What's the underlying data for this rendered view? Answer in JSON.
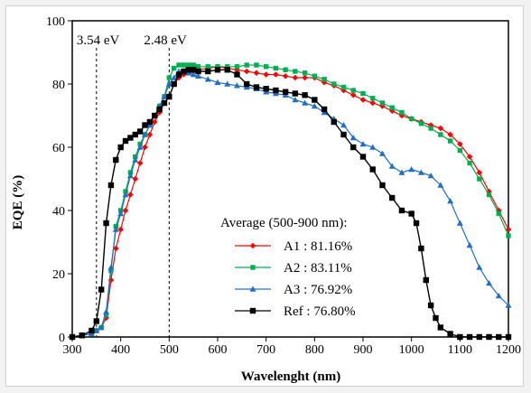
{
  "chart_data": {
    "type": "line",
    "xlabel": "Wavelenght (nm)",
    "ylabel": "EQE (%)",
    "xlim": [
      300,
      1200
    ],
    "ylim": [
      0,
      100
    ],
    "x_ticks": [
      "300",
      "400",
      "500",
      "600",
      "700",
      "800",
      "900",
      "1000",
      "1100",
      "1200"
    ],
    "y_ticks": [
      "0",
      "20",
      "40",
      "60",
      "80",
      "100"
    ],
    "grid": false,
    "legend_placement": "bottom-center",
    "legend_title": "Average (500-900 nm):",
    "annotations": [
      {
        "label": "3.54 eV",
        "x": 350
      },
      {
        "label": "2.48 eV",
        "x": 500
      }
    ],
    "series": [
      {
        "name": "A1",
        "legend_label": "A1 : 81.16%",
        "color": "#ff0000",
        "marker": "diamond",
        "x": [
          300,
          320,
          340,
          350,
          360,
          370,
          380,
          390,
          400,
          410,
          420,
          430,
          440,
          450,
          460,
          470,
          480,
          490,
          500,
          510,
          520,
          530,
          540,
          550,
          560,
          580,
          600,
          620,
          640,
          660,
          680,
          700,
          720,
          740,
          760,
          780,
          800,
          820,
          840,
          860,
          880,
          900,
          920,
          940,
          960,
          980,
          1000,
          1020,
          1040,
          1060,
          1080,
          1100,
          1120,
          1140,
          1160,
          1180,
          1200
        ],
        "y": [
          0,
          0.5,
          1,
          2,
          3,
          6,
          18,
          28,
          34,
          40,
          45,
          50,
          55,
          60,
          64,
          68,
          71,
          74,
          76,
          80,
          82,
          83,
          83.5,
          84,
          84.5,
          85,
          85.5,
          85,
          84.5,
          84,
          83.5,
          83,
          83,
          82.5,
          82,
          82,
          82,
          80.5,
          79.5,
          78,
          76.5,
          75,
          74,
          73,
          71.5,
          70,
          69,
          68,
          67,
          66,
          64,
          61,
          57,
          52,
          46,
          40,
          34
        ]
      },
      {
        "name": "A2",
        "legend_label": "A2 : 83.11%",
        "color": "#00b050",
        "marker": "square",
        "x": [
          300,
          320,
          340,
          350,
          360,
          370,
          380,
          390,
          400,
          410,
          420,
          430,
          440,
          450,
          460,
          470,
          480,
          490,
          500,
          510,
          520,
          530,
          540,
          550,
          560,
          580,
          600,
          620,
          640,
          660,
          680,
          700,
          720,
          740,
          760,
          780,
          800,
          820,
          840,
          860,
          880,
          900,
          920,
          940,
          960,
          980,
          1000,
          1020,
          1040,
          1060,
          1080,
          1100,
          1120,
          1140,
          1160,
          1180,
          1200
        ],
        "y": [
          0,
          0.5,
          1,
          2,
          3,
          7,
          21,
          35,
          40,
          46,
          52,
          57,
          61,
          64,
          67,
          70,
          73,
          76,
          82,
          85,
          86,
          86,
          86,
          86,
          85.5,
          85.5,
          85.5,
          85.5,
          85.5,
          86,
          86,
          85.5,
          85,
          84.5,
          84,
          83.5,
          82.5,
          81.5,
          80,
          79,
          78,
          77,
          75.5,
          74,
          72.5,
          71,
          69,
          67.5,
          66,
          64,
          62,
          59,
          55,
          50,
          45,
          39,
          32
        ]
      },
      {
        "name": "A3",
        "legend_label": "A3 : 76.92%",
        "color": "#1f6fc5",
        "marker": "triangle",
        "x": [
          300,
          320,
          340,
          350,
          360,
          370,
          380,
          390,
          400,
          410,
          420,
          430,
          440,
          450,
          460,
          470,
          480,
          490,
          500,
          510,
          520,
          530,
          540,
          550,
          560,
          580,
          600,
          620,
          640,
          660,
          680,
          700,
          720,
          740,
          760,
          780,
          800,
          820,
          840,
          860,
          880,
          900,
          920,
          940,
          960,
          980,
          1000,
          1020,
          1040,
          1060,
          1080,
          1100,
          1120,
          1140,
          1160,
          1180,
          1200
        ],
        "y": [
          0,
          0.5,
          1,
          2,
          3,
          8,
          22,
          34,
          39,
          45,
          51,
          56,
          60,
          64,
          67,
          70,
          73,
          76,
          80,
          82,
          84,
          84,
          83.5,
          83,
          82.5,
          81.5,
          80.5,
          80,
          79.5,
          79,
          78.5,
          77.5,
          77,
          76.5,
          75,
          74,
          73,
          71,
          69,
          67,
          63,
          61,
          60,
          58,
          54,
          52,
          53,
          52,
          51,
          48,
          43,
          36,
          29,
          22,
          17,
          13,
          10
        ]
      },
      {
        "name": "Ref",
        "legend_label": "Ref : 76.80%",
        "color": "#000000",
        "marker": "square",
        "x": [
          300,
          320,
          340,
          350,
          360,
          370,
          380,
          390,
          400,
          410,
          420,
          430,
          440,
          450,
          460,
          470,
          480,
          490,
          500,
          510,
          520,
          530,
          540,
          550,
          560,
          580,
          600,
          620,
          640,
          660,
          680,
          700,
          720,
          740,
          760,
          780,
          800,
          820,
          840,
          860,
          880,
          900,
          920,
          940,
          960,
          980,
          1000,
          1010,
          1020,
          1030,
          1040,
          1050,
          1060,
          1080,
          1100,
          1120,
          1140,
          1160,
          1180,
          1200
        ],
        "y": [
          0,
          0.5,
          2,
          5,
          15,
          36,
          48,
          56,
          60,
          62,
          63,
          64,
          65,
          67,
          68,
          70,
          72,
          74,
          76,
          80,
          83,
          84,
          84.5,
          84.5,
          84,
          84,
          84.5,
          84.5,
          83,
          80,
          79,
          78.5,
          78,
          77.5,
          77,
          76.5,
          75,
          72,
          68,
          64,
          60,
          57,
          53,
          48,
          44,
          40,
          39,
          36,
          28,
          18,
          10,
          6,
          3,
          1,
          0,
          0,
          0,
          0,
          0,
          0
        ]
      }
    ]
  }
}
